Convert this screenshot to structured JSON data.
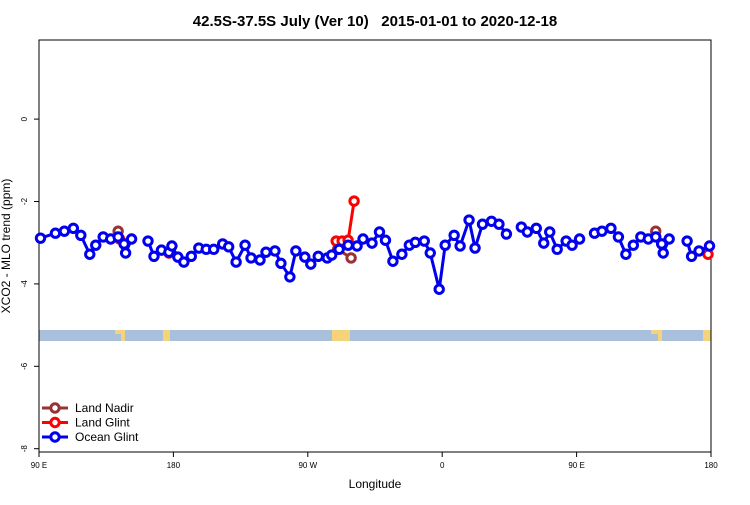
{
  "chart_data": {
    "type": "line",
    "title": "42.5S-37.5S July (Ver 10)   2015-01-01 to 2020-12-18",
    "xlabel": "Longitude",
    "ylabel": "XCO2 - MLO trend (ppm)",
    "xlim": [
      90,
      540
    ],
    "ylim": [
      -8.08,
      1.92
    ],
    "xticks": [
      {
        "value": 90,
        "label": "90 E"
      },
      180,
      {
        "value": 270,
        "label": "90 W"
      },
      {
        "value": 360,
        "label": "0"
      },
      {
        "value": 450,
        "label": "90 E"
      },
      {
        "value": 540,
        "label": "180"
      }
    ],
    "yticks": [
      0,
      -2,
      -4,
      -6,
      -8
    ],
    "legend": "bottom-left",
    "series": [
      {
        "name": "Land Nadir",
        "color": "#993333",
        "x": [
          143,
          147,
          null,
          290,
          299,
          null,
          503,
          507
        ],
        "values": [
          -2.72,
          -3.03,
          null,
          -3.16,
          -3.37,
          null,
          -2.72,
          -3.03
        ]
      },
      {
        "name": "Land Glint",
        "color": "#ff0000",
        "x": [
          144,
          null,
          177,
          null,
          289,
          293,
          297,
          301,
          null,
          538
        ],
        "values": [
          -2.91,
          null,
          -3.25,
          null,
          -2.96,
          -2.96,
          -2.94,
          -1.99,
          null,
          -3.28
        ]
      },
      {
        "name": "Ocean Glint",
        "color": "#0000ee",
        "x": [
          91,
          101,
          107,
          113,
          118,
          124,
          128,
          133,
          138,
          143,
          147,
          148,
          152,
          null,
          163,
          167,
          172,
          177,
          179,
          183,
          187,
          192,
          197,
          202,
          207,
          213,
          217,
          222,
          228,
          232,
          238,
          242,
          248,
          252,
          258,
          262,
          268,
          272,
          277,
          283,
          286,
          291,
          297,
          303,
          307,
          313,
          318,
          322,
          327,
          333,
          338,
          342,
          348,
          352,
          358,
          362,
          368,
          372,
          378,
          382,
          387,
          393,
          398,
          403,
          null,
          413,
          417,
          423,
          428,
          432,
          437,
          443,
          447,
          452,
          null,
          462,
          467,
          473,
          478,
          483,
          488,
          493,
          498,
          503,
          507,
          508,
          512,
          null,
          524,
          527,
          532,
          539
        ],
        "values": [
          -2.89,
          -2.77,
          -2.72,
          -2.65,
          -2.82,
          -3.28,
          -3.06,
          -2.86,
          -2.91,
          -2.86,
          -3.03,
          -3.25,
          -2.91,
          null,
          -2.96,
          -3.33,
          -3.18,
          -3.23,
          -3.08,
          -3.35,
          -3.47,
          -3.33,
          -3.13,
          -3.16,
          -3.16,
          -3.03,
          -3.1,
          -3.47,
          -3.06,
          -3.37,
          -3.42,
          -3.23,
          -3.2,
          -3.5,
          -3.83,
          -3.2,
          -3.35,
          -3.52,
          -3.33,
          -3.37,
          -3.3,
          -3.16,
          -3.06,
          -3.08,
          -2.91,
          -3.01,
          -2.74,
          -2.94,
          -3.45,
          -3.28,
          -3.06,
          -2.99,
          -2.96,
          -3.25,
          -4.13,
          -3.06,
          -2.82,
          -3.08,
          -2.45,
          -3.13,
          -2.55,
          -2.48,
          -2.55,
          -2.79,
          null,
          -2.62,
          -2.74,
          -2.65,
          -3.01,
          -2.74,
          -3.16,
          -2.96,
          -3.06,
          -2.91,
          null,
          -2.77,
          -2.72,
          -2.65,
          -2.86,
          -3.28,
          -3.06,
          -2.86,
          -2.91,
          -2.86,
          -3.03,
          -3.25,
          -2.91,
          null,
          -2.96,
          -3.33,
          -3.2,
          -3.08
        ]
      }
    ]
  }
}
